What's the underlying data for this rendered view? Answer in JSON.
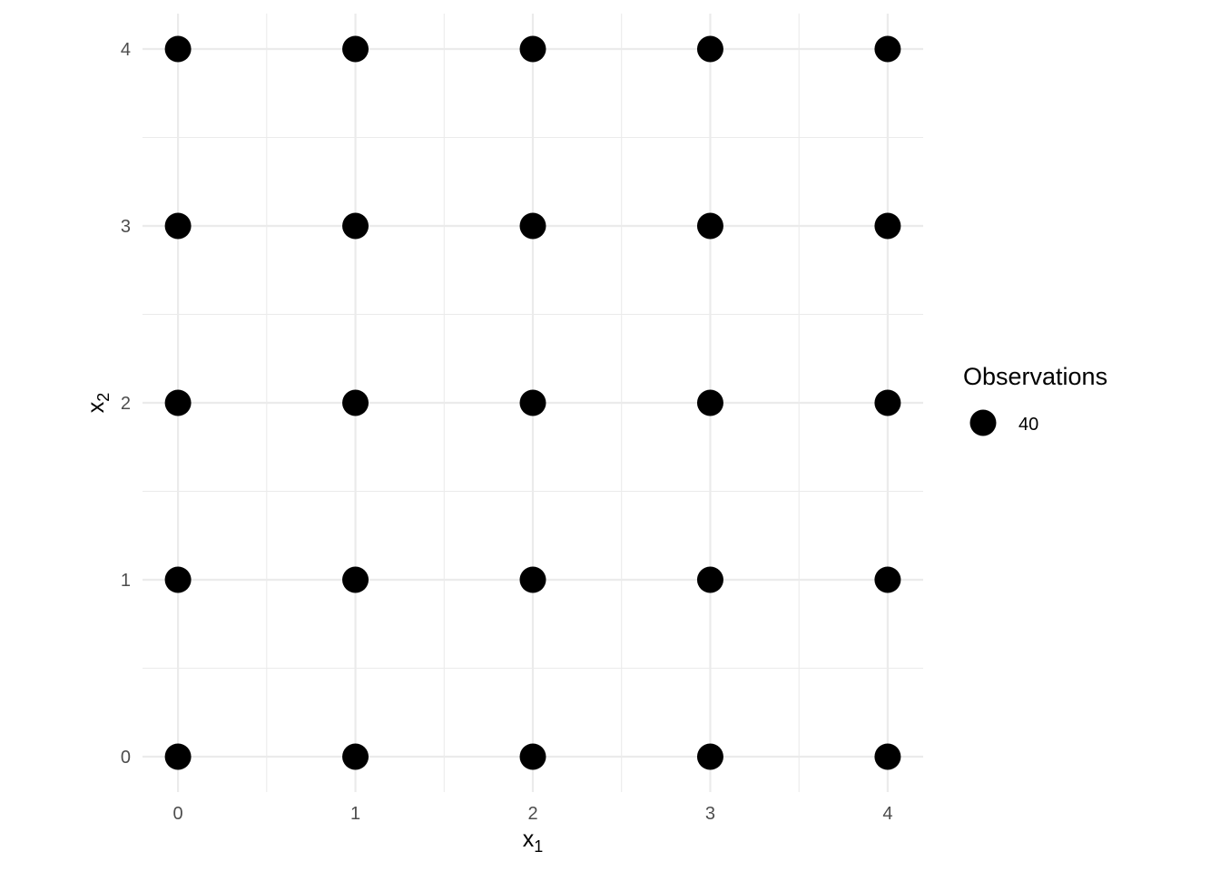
{
  "chart_data": {
    "type": "scatter",
    "title": "",
    "xlabel": {
      "main": "x",
      "sub": "1"
    },
    "ylabel": {
      "main": "x",
      "sub": "2"
    },
    "xlim": [
      -0.2,
      4.2
    ],
    "ylim": [
      -0.2,
      4.2
    ],
    "x_ticks": [
      0,
      1,
      2,
      3,
      4
    ],
    "y_ticks": [
      0,
      1,
      2,
      3,
      4
    ],
    "x_tick_labels": [
      "0",
      "1",
      "2",
      "3",
      "4"
    ],
    "y_tick_labels": [
      "0",
      "1",
      "2",
      "3",
      "4"
    ],
    "grid": true,
    "legend": {
      "title": "Observations",
      "placement": "right",
      "entries": [
        {
          "label": "40",
          "symbol": "filled-circle",
          "color": "#000000"
        }
      ]
    },
    "point_color": "#000000",
    "points": [
      {
        "x": 0,
        "y": 0
      },
      {
        "x": 1,
        "y": 0
      },
      {
        "x": 2,
        "y": 0
      },
      {
        "x": 3,
        "y": 0
      },
      {
        "x": 4,
        "y": 0
      },
      {
        "x": 0,
        "y": 1
      },
      {
        "x": 1,
        "y": 1
      },
      {
        "x": 2,
        "y": 1
      },
      {
        "x": 3,
        "y": 1
      },
      {
        "x": 4,
        "y": 1
      },
      {
        "x": 0,
        "y": 2
      },
      {
        "x": 1,
        "y": 2
      },
      {
        "x": 2,
        "y": 2
      },
      {
        "x": 3,
        "y": 2
      },
      {
        "x": 4,
        "y": 2
      },
      {
        "x": 0,
        "y": 3
      },
      {
        "x": 1,
        "y": 3
      },
      {
        "x": 2,
        "y": 3
      },
      {
        "x": 3,
        "y": 3
      },
      {
        "x": 4,
        "y": 3
      },
      {
        "x": 0,
        "y": 4
      },
      {
        "x": 1,
        "y": 4
      },
      {
        "x": 2,
        "y": 4
      },
      {
        "x": 3,
        "y": 4
      },
      {
        "x": 4,
        "y": 4
      }
    ],
    "observations": [
      40,
      40,
      40,
      40,
      40,
      40,
      40,
      40,
      40,
      40,
      40,
      40,
      40,
      40,
      40,
      40,
      40,
      40,
      40,
      40,
      40,
      40,
      40,
      40,
      40
    ]
  }
}
